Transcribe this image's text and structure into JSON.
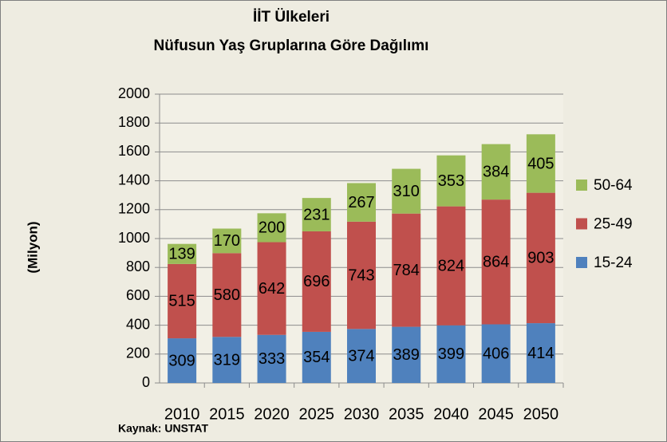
{
  "chart_data": {
    "type": "stacked_bar",
    "title": "İİT Ülkeleri",
    "subtitle": "Nüfusun Yaş Gruplarına Göre Dağılımı",
    "y_label": "(Milyon)",
    "source": "Kaynak: UNSTAT",
    "categories": [
      "2010",
      "2015",
      "2020",
      "2025",
      "2030",
      "2035",
      "2040",
      "2045",
      "2050"
    ],
    "series": [
      {
        "name": "15-24",
        "color": "#4f81bd",
        "values": [
          309,
          319,
          333,
          354,
          374,
          389,
          399,
          406,
          414
        ]
      },
      {
        "name": "25-49",
        "color": "#c0504d",
        "values": [
          515,
          580,
          642,
          696,
          743,
          784,
          824,
          864,
          903
        ]
      },
      {
        "name": "50-64",
        "color": "#9bbb59",
        "values": [
          139,
          170,
          200,
          231,
          267,
          310,
          353,
          384,
          405
        ]
      }
    ],
    "ylim": [
      0,
      2000
    ],
    "yticks": [
      0,
      200,
      400,
      600,
      800,
      1000,
      1200,
      1400,
      1600,
      1800,
      2000
    ],
    "grid": true,
    "legend": "right"
  }
}
